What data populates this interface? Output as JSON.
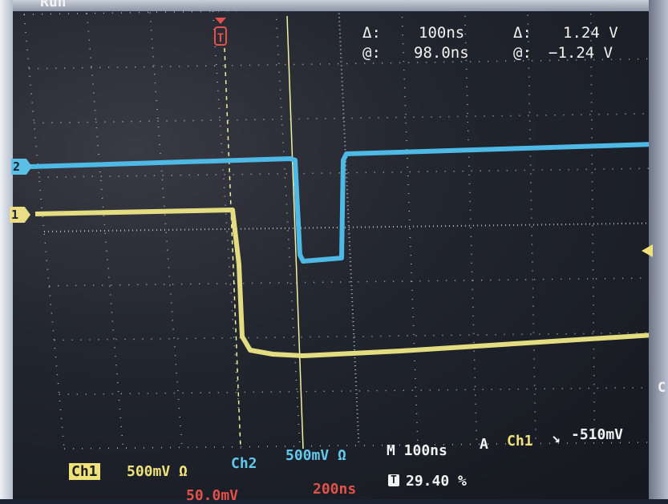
{
  "header": {
    "status_partial": "Run"
  },
  "cursor_readout": {
    "time_delta_symbol": "Δ:",
    "time_delta_value": "100ns",
    "time_at_symbol": "@:",
    "time_at_value": "98.0ns",
    "volt_delta_symbol": "Δ:",
    "volt_delta_value": "1.24 V",
    "volt_at_symbol": "@:",
    "volt_at_value": "−1.24 V"
  },
  "channel_markers": {
    "ch2": "2",
    "ch1": "1"
  },
  "trigger_marker": {
    "label": "T"
  },
  "status_bar": {
    "ch1_label": "Ch1",
    "ch1_scale": "500mV Ω",
    "ch2_label": "Ch2",
    "ch2_scale": "500mV Ω",
    "timebase": "M 100ns",
    "trigger_mode": "A",
    "trigger_source": "Ch1",
    "trigger_slope": "↘",
    "trigger_level": "-510mV",
    "math_scale": "50.0mV",
    "math_time": "200ns",
    "trigger_position_icon": "T",
    "trigger_position": "29.40 %"
  },
  "side_softkey": {
    "label": "C"
  },
  "colors": {
    "ch1": "#f0e27a",
    "ch2": "#62c8ec",
    "cursor": "#f5f0a0",
    "grid": "#e8e8e8",
    "trigger_marker": "#e2514a"
  }
}
